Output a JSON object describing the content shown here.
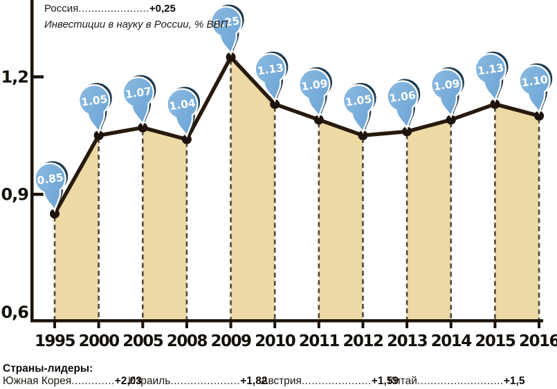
{
  "header": {
    "country": "Россия",
    "leader": "......................",
    "value": "+0,25",
    "subtitle": "Инвестиции в науку в России, % ВВП"
  },
  "chart_data": {
    "type": "line",
    "title": "Россия +0,25",
    "subtitle": "Инвестиции в науку в России, % ВВП",
    "categories": [
      "1995",
      "2000",
      "2005",
      "2008",
      "2009",
      "2010",
      "2011",
      "2012",
      "2013",
      "2014",
      "2015",
      "2016"
    ],
    "values": [
      0.85,
      1.05,
      1.07,
      1.04,
      1.25,
      1.13,
      1.09,
      1.05,
      1.06,
      1.09,
      1.13,
      1.1
    ],
    "point_labels": [
      "0.85",
      "1.05",
      "1.07",
      "1.04",
      "1.25",
      "1.13",
      "1.09",
      "1.05",
      "1.06",
      "1.09",
      "1.13",
      "1.10"
    ],
    "xlabel": "",
    "ylabel": "% ВВП",
    "ylim": [
      0.58,
      1.3
    ],
    "yticks": [
      {
        "label": "1,2",
        "value": 1.2
      },
      {
        "label": "0,9",
        "value": 0.9
      },
      {
        "label": "0,6",
        "value": 0.6
      }
    ],
    "grid": "dashed vertical drop-lines under every point",
    "legend_position": "none",
    "area_bands": "alternating beige fill between consecutive points, starting with 1995-2000"
  },
  "colors": {
    "band": "#ecd9a4",
    "line": "#271a0d",
    "point": "#1d130a",
    "dash": "#4f463b",
    "axis": "#1b1209",
    "label_text": "#14100a",
    "pin_fill_light": "#8cbbe2",
    "pin_fill_dark": "#67a0d2",
    "pin_shadow": "#1d3a51",
    "pin_stroke": "#ffffff",
    "pin_text": "#ffffff"
  },
  "footer": {
    "heading": "Страны-лидеры:",
    "entries": [
      {
        "name": "Южная Корея",
        "leader": ".............",
        "value": "+2,03"
      },
      {
        "name": "Израиль",
        "leader": ".....................",
        "value": "+1,82"
      },
      {
        "name": "Австрия",
        "leader": ".....................",
        "value": "+1,59"
      },
      {
        "name": "Китай",
        "leader": "..........................",
        "value": "+1,5"
      }
    ]
  }
}
